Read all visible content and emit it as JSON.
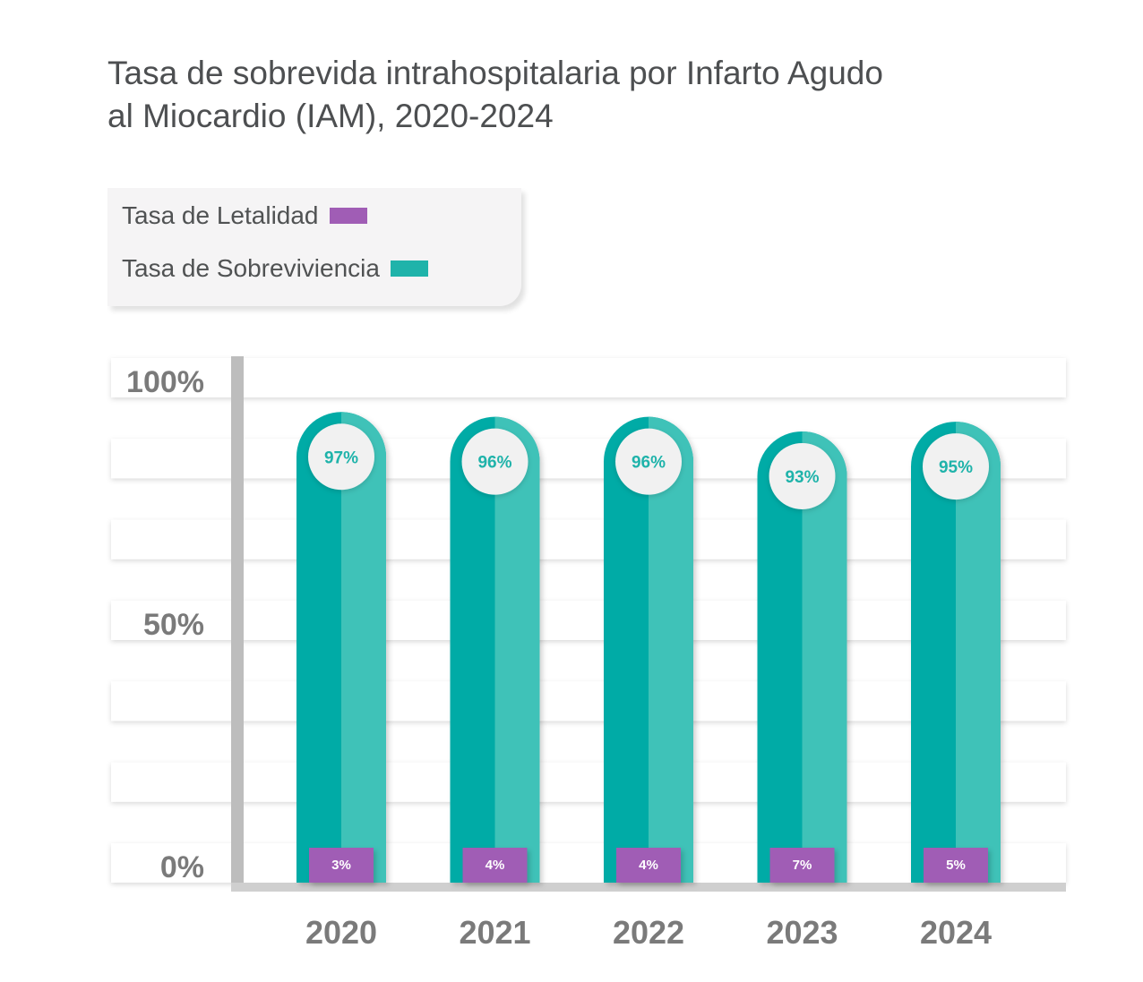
{
  "title": {
    "line1": "Tasa de sobrevida intrahospitalaria por Infarto Agudo",
    "line2": "al Miocardio (IAM), 2020-2024"
  },
  "legend": [
    {
      "label": "Tasa de Letalidad",
      "color": "#a05db5"
    },
    {
      "label": "Tasa de Sobreviviencia",
      "color": "#1fb3aa"
    }
  ],
  "colors": {
    "survival_dark": "#00aba6",
    "survival_light": "#3fc2b8",
    "lethality": "#a05db5",
    "bubble": "#f1f1f1",
    "bubble_text": "#1fb3aa",
    "axis": "#bdbdbd",
    "tick_text": "#7a7a7a"
  },
  "chart_data": {
    "type": "bar",
    "categories": [
      "2020",
      "2021",
      "2022",
      "2023",
      "2024"
    ],
    "ylim": [
      0,
      100
    ],
    "yticks": [
      "0%",
      "50%",
      "100%"
    ],
    "series": [
      {
        "name": "Tasa de Sobreviviencia",
        "values": [
          97,
          96,
          96,
          93,
          95
        ],
        "labels": [
          "97%",
          "96%",
          "96%",
          "93%",
          "95%"
        ]
      },
      {
        "name": "Tasa de Letalidad",
        "values": [
          3,
          4,
          4,
          7,
          5
        ],
        "labels": [
          "3%",
          "4%",
          "4%",
          "7%",
          "5%"
        ]
      }
    ]
  }
}
